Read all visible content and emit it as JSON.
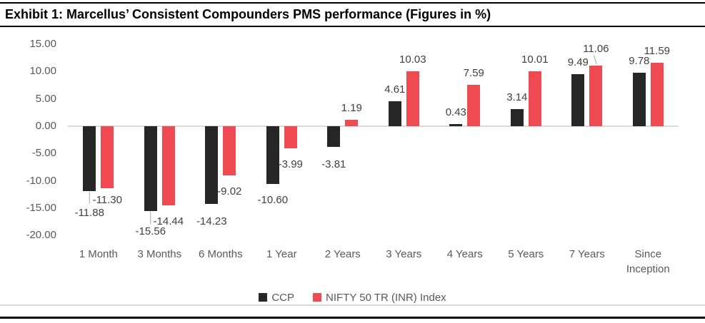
{
  "chart_data": {
    "type": "bar",
    "title": "Exhibit 1: Marcellus’ Consistent Compounders PMS performance (Figures in %)",
    "categories": [
      "1 Month",
      "3 Months",
      "6 Months",
      "1 Year",
      "2 Years",
      "3 Years",
      "4 Years",
      "5 Years",
      "7 Years",
      "Since Inception"
    ],
    "series": [
      {
        "name": "CCP",
        "color": "#262626",
        "values": [
          -11.88,
          -15.56,
          -14.23,
          -10.6,
          -3.81,
          4.61,
          0.43,
          3.14,
          9.49,
          9.78
        ]
      },
      {
        "name": "NIFTY 50 TR (INR) Index",
        "color": "#ef4a52",
        "values": [
          -11.3,
          -14.44,
          -9.02,
          -3.99,
          1.19,
          10.03,
          7.59,
          10.01,
          11.06,
          11.59
        ]
      }
    ],
    "y_ticks": [
      15,
      10,
      5,
      0,
      -5,
      -10,
      -15,
      -20
    ],
    "y_tick_labels": [
      "15.00",
      "10.00",
      "5.00",
      "0.00",
      "-5.00",
      "-10.00",
      "-15.00",
      "-20.00"
    ],
    "ylim": [
      -20,
      15
    ],
    "grid": false,
    "data_labels": true,
    "legend_position": "bottom",
    "colors": {
      "axis_line": "#d9d9d9",
      "data_label": "#404040",
      "axis_label": "#595959",
      "leader_line": "#a6a6a6"
    }
  }
}
